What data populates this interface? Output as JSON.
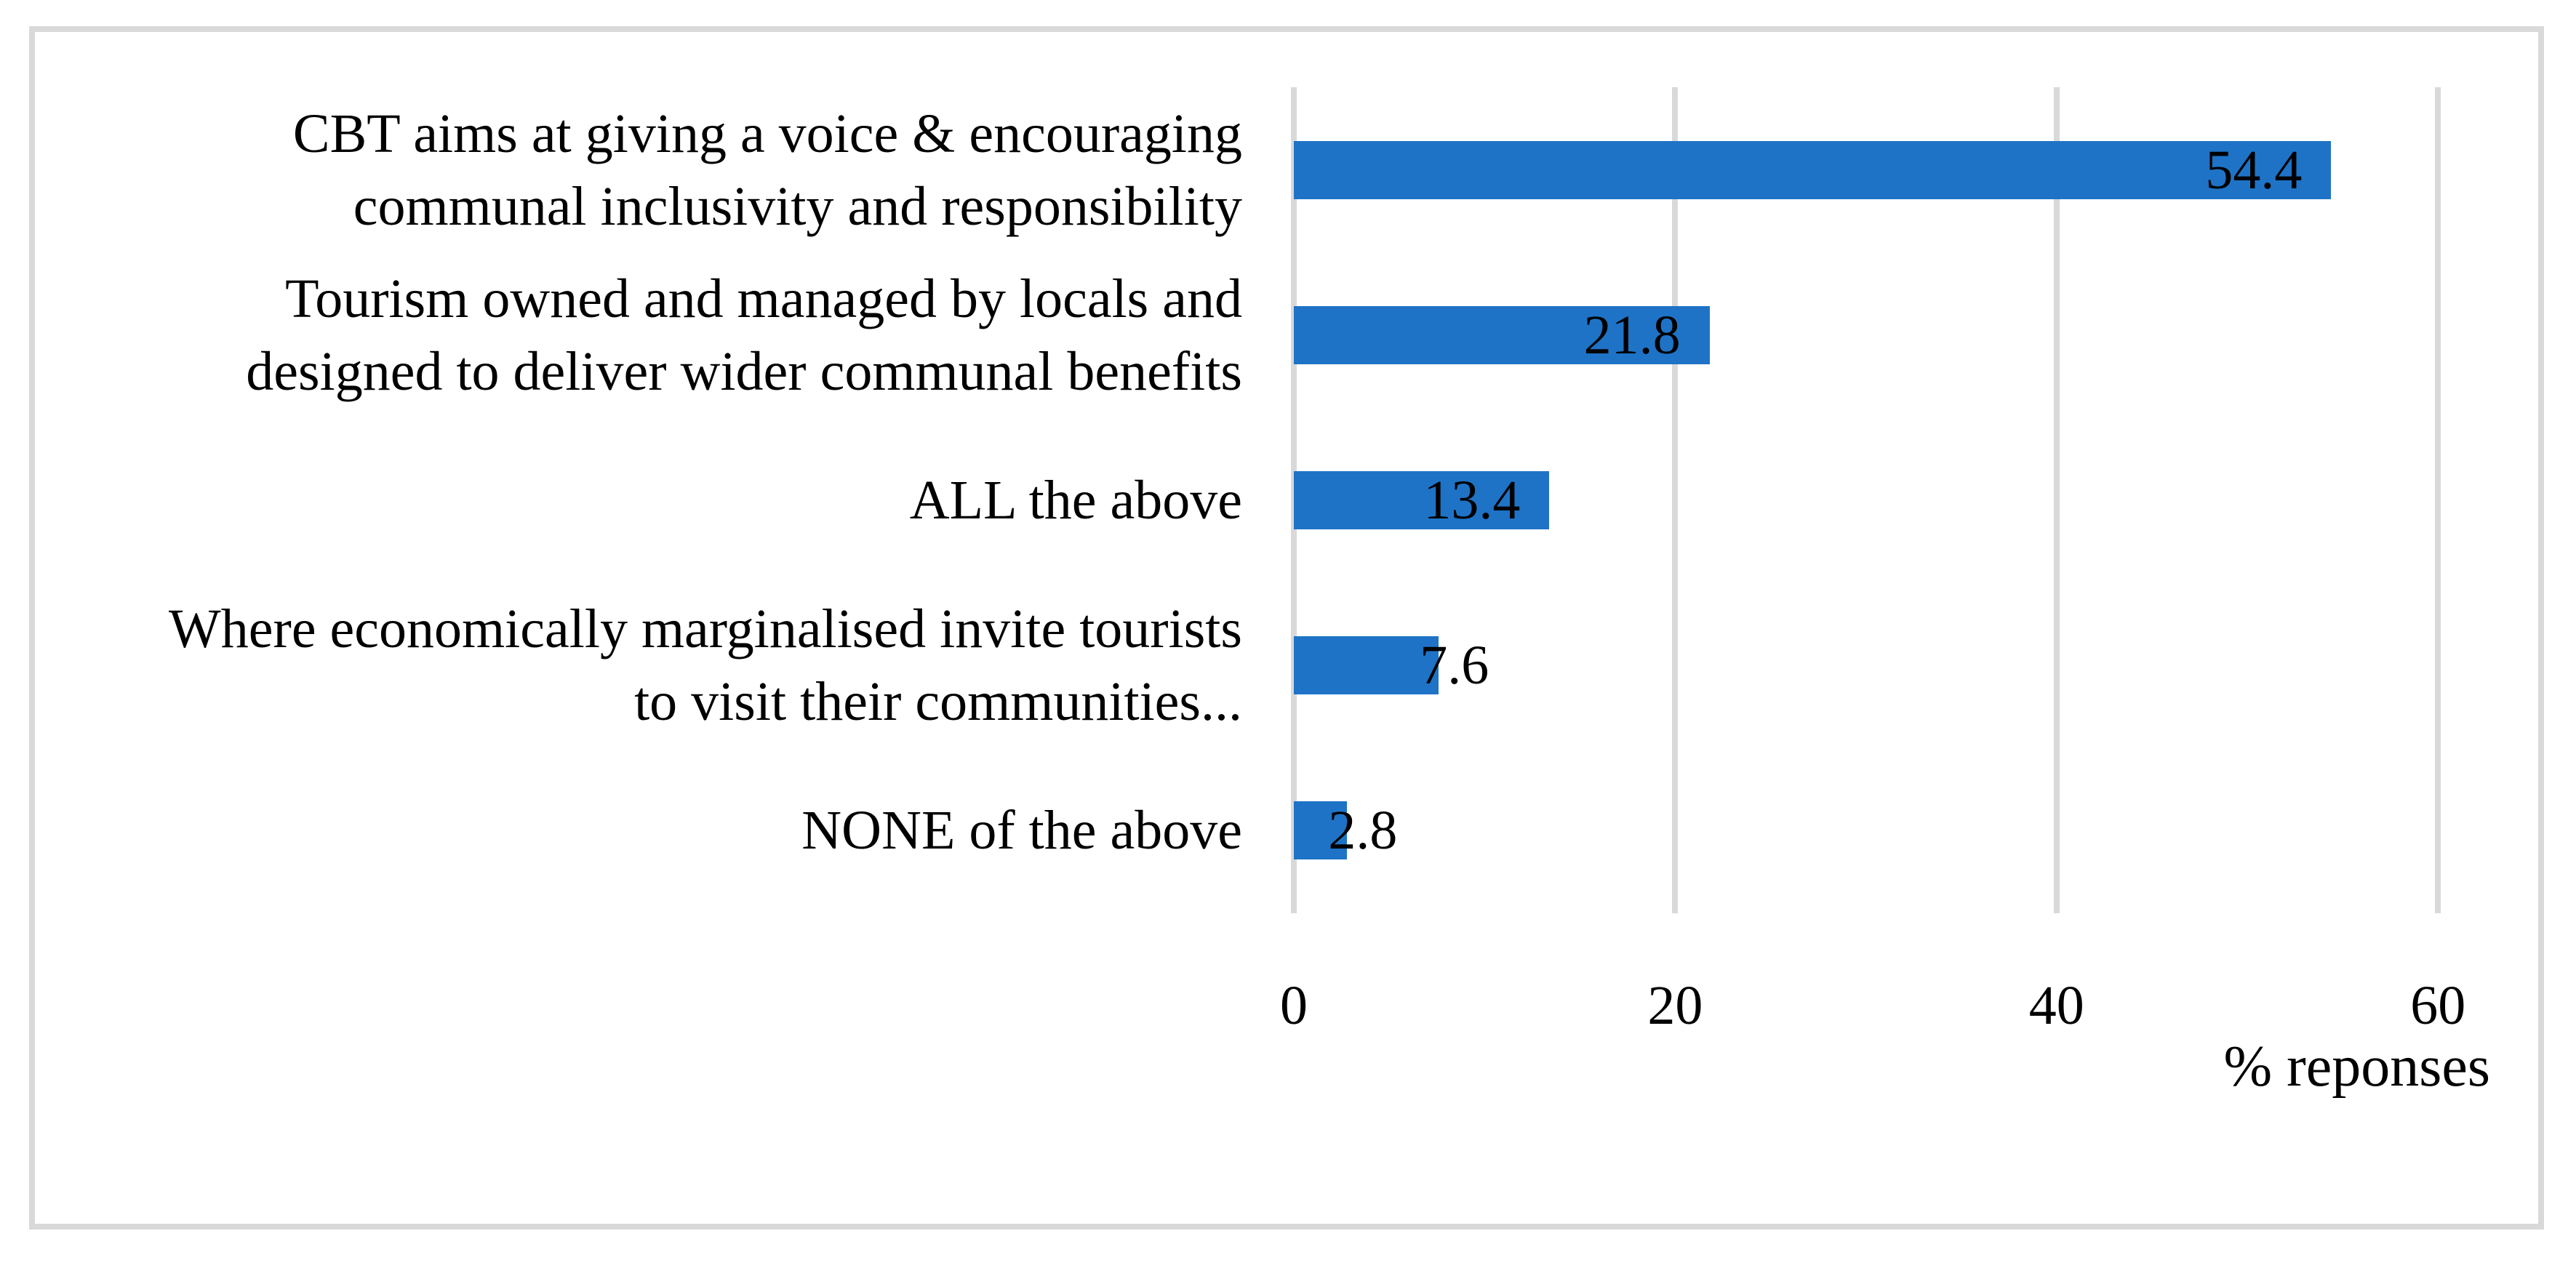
{
  "figure": {
    "background_color": "#FFFFFF",
    "border_color": "#D9D9D9",
    "text_color": "#000000"
  },
  "chart_data": {
    "type": "bar",
    "orientation": "horizontal",
    "title": "",
    "xlabel": "% reponses",
    "ylabel": "",
    "categories": [
      "CBT aims at giving a voice & encouraging communal inclusivity and responsibility",
      "Tourism owned and managed by locals and designed to deliver wider communal benefits",
      "ALL the above",
      "Where economically marginalised invite tourists to visit their communities...",
      "NONE of the above"
    ],
    "category_lines": [
      [
        "CBT aims at giving a voice & encouraging",
        "communal inclusivity and responsibility"
      ],
      [
        "Tourism owned and managed by locals and",
        "designed to deliver wider communal benefits"
      ],
      [
        "ALL the above"
      ],
      [
        "Where economically marginalised invite tourists",
        "to visit their communities..."
      ],
      [
        "NONE of the above"
      ]
    ],
    "values": [
      54.4,
      21.8,
      13.4,
      7.6,
      2.8
    ],
    "value_labels": [
      "54.4",
      "21.8",
      "13.4",
      "7.6",
      "2.8"
    ],
    "xlim": [
      0,
      60
    ],
    "xticks": [
      0,
      20,
      40,
      60
    ],
    "xtick_labels": [
      "0",
      "20",
      "40",
      "60"
    ],
    "grid": "vertical",
    "gridline_color": "#D9D9D9",
    "bar_color": "#1E73C6",
    "data_label_position": "inside-end",
    "legend": "none"
  }
}
